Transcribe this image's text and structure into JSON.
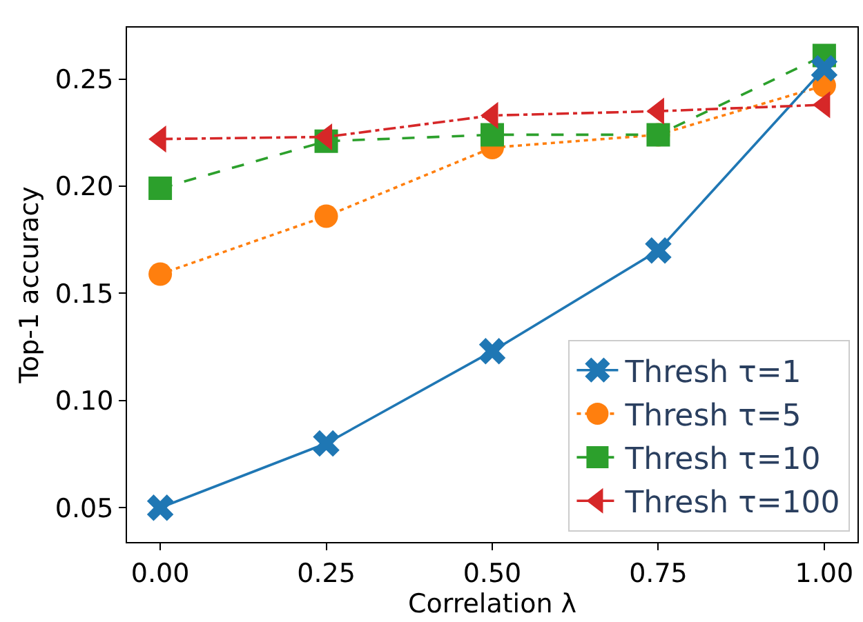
{
  "chart_data": {
    "type": "line",
    "xlabel": "Correlation λ",
    "ylabel": "Top-1 accuracy",
    "x": [
      0.0,
      0.25,
      0.5,
      0.75,
      1.0
    ],
    "series": [
      {
        "name": "Thresh τ=1",
        "color": "#1f77b4",
        "marker": "cross",
        "line_style": "solid",
        "values": [
          0.05,
          0.08,
          0.123,
          0.17,
          0.255
        ]
      },
      {
        "name": "Thresh τ=5",
        "color": "#ff7f0e",
        "marker": "circle",
        "line_style": "dotted",
        "values": [
          0.159,
          0.186,
          0.218,
          0.224,
          0.247
        ]
      },
      {
        "name": "Thresh τ=10",
        "color": "#2ca02c",
        "marker": "square",
        "line_style": "dashed",
        "values": [
          0.199,
          0.221,
          0.224,
          0.224,
          0.261
        ]
      },
      {
        "name": "Thresh τ=100",
        "color": "#d62728",
        "marker": "triangle",
        "line_style": "dashdot",
        "values": [
          0.222,
          0.223,
          0.233,
          0.235,
          0.238
        ]
      }
    ],
    "xlim": [
      -0.05,
      1.05
    ],
    "xticks": [
      {
        "value": 0,
        "label": "0.00"
      },
      0.25,
      {
        "value": 0.5,
        "label": "0.50"
      },
      0.75,
      {
        "value": 1,
        "label": "1.00"
      }
    ],
    "ylim": [
      0.034,
      0.274
    ],
    "yticks": [
      0.05,
      {
        "value": 0.1,
        "label": "0.10"
      },
      0.15,
      {
        "value": 0.2,
        "label": "0.20"
      },
      0.25
    ],
    "legend": "bottom right"
  }
}
